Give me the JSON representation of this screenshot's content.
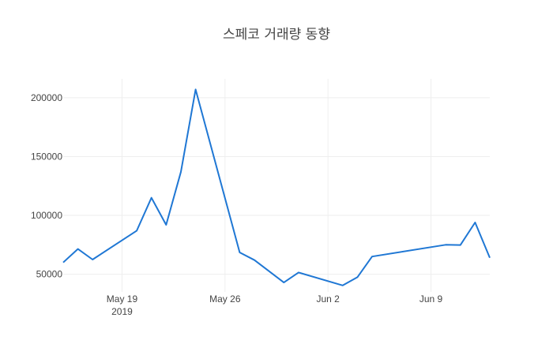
{
  "chart_data": {
    "type": "line",
    "title": "스페코 거래량 동향",
    "xlabel": "",
    "ylabel": "",
    "x_tick_labels": [
      {
        "date": "2019-05-19",
        "label": "May 19",
        "sublabel": "2019"
      },
      {
        "date": "2019-05-26",
        "label": "May 26",
        "sublabel": ""
      },
      {
        "date": "2019-06-02",
        "label": "Jun 2",
        "sublabel": ""
      },
      {
        "date": "2019-06-09",
        "label": "Jun 9",
        "sublabel": ""
      }
    ],
    "y_ticks": [
      50000,
      100000,
      150000,
      200000
    ],
    "y_tick_labels": [
      "50000",
      "100000",
      "150000",
      "200000"
    ],
    "xlim": [
      "2019-05-15",
      "2019-06-13"
    ],
    "ylim": [
      35000,
      216000
    ],
    "grid": true,
    "color": "#1f77d4",
    "series": [
      {
        "x": [
          "2019-05-15",
          "2019-05-16",
          "2019-05-17",
          "2019-05-20",
          "2019-05-21",
          "2019-05-22",
          "2019-05-23",
          "2019-05-24",
          "2019-05-27",
          "2019-05-28",
          "2019-05-30",
          "2019-05-31",
          "2019-06-03",
          "2019-06-04",
          "2019-06-05",
          "2019-06-10",
          "2019-06-11",
          "2019-06-12",
          "2019-06-13"
        ],
        "values": [
          60000,
          71500,
          62500,
          87000,
          115000,
          92000,
          137000,
          207000,
          68500,
          62000,
          43000,
          51500,
          40500,
          47500,
          65000,
          75000,
          74800,
          94000,
          64000
        ]
      }
    ]
  }
}
